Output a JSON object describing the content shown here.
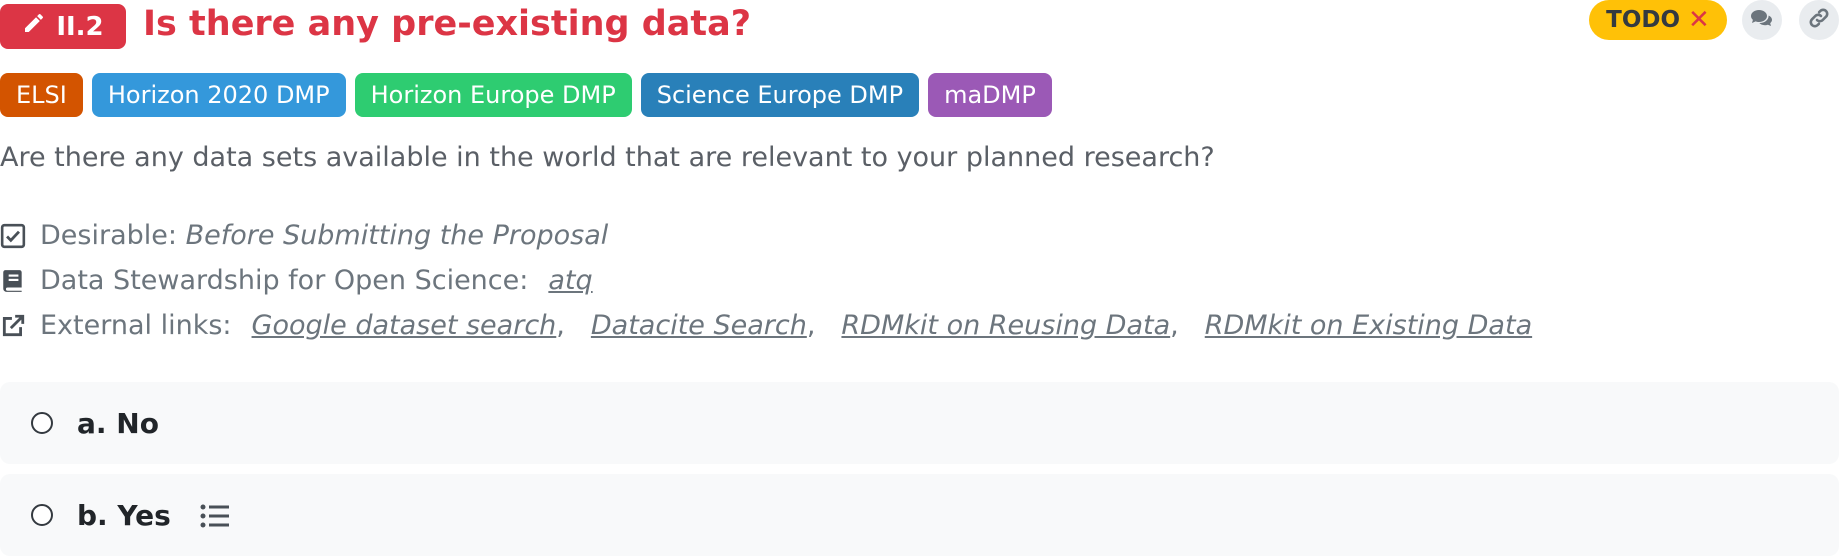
{
  "question": {
    "number": "II.2",
    "title": "Is there any pre-existing data?",
    "status_label": "TODO",
    "status_clear": "✕",
    "description": "Are there any data sets available in the world that are relevant to your planned research?"
  },
  "tags": [
    {
      "label": "ELSI",
      "color": "#d35400"
    },
    {
      "label": "Horizon 2020 DMP",
      "color": "#3498db"
    },
    {
      "label": "Horizon Europe DMP",
      "color": "#2ecc71"
    },
    {
      "label": "Science Europe DMP",
      "color": "#2980b9"
    },
    {
      "label": "maDMP",
      "color": "#9b59b6"
    }
  ],
  "meta": {
    "desirable_label": "Desirable:",
    "desirable_value": "Before Submitting the Proposal",
    "book_label": "Data Stewardship for Open Science:",
    "book_value": "atq",
    "links_label": "External links:",
    "links": [
      "Google dataset search",
      "Datacite Search",
      "RDMkit on Reusing Data",
      "RDMkit on Existing Data"
    ],
    "link_separator": ","
  },
  "options": [
    {
      "label": "a. No"
    },
    {
      "label": "b. Yes"
    }
  ],
  "colors": {
    "accent": "#dc3545",
    "todo": "#ffc107"
  }
}
